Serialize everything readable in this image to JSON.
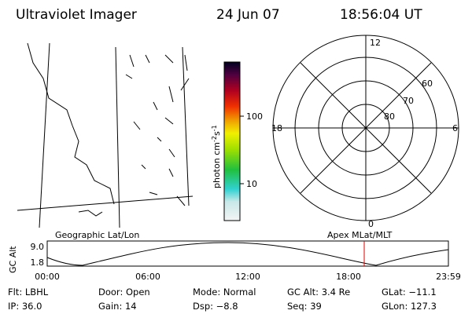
{
  "header": {
    "title": "Ultraviolet Imager",
    "date": "24 Jun 07",
    "time": "18:56:04 UT"
  },
  "colorbar": {
    "label": [
      "photon cm",
      "-2",
      "s",
      "-1"
    ],
    "ticks": [
      "100",
      "10"
    ]
  },
  "polar": {
    "hours": [
      "12",
      "18",
      "6",
      "0"
    ],
    "latitudes": [
      "60",
      "70",
      "80"
    ]
  },
  "panels": {
    "left": "Geographic Lat/Lon",
    "right": "Apex MLat/MLT"
  },
  "altitude": {
    "ylabel": "GC Alt",
    "yticks": [
      "9.0",
      "1.8"
    ],
    "xticks": [
      "00:00",
      "06:00",
      "12:00",
      "18:00",
      "23:59"
    ]
  },
  "footer": {
    "rows": [
      [
        "Flt: LBHL",
        "Door: Open",
        "Mode: Normal",
        "GC Alt: 3.4 Re",
        "GLat: −11.1"
      ],
      [
        "IP: 36.0",
        "Gain: 14",
        "Dsp:   −8.8",
        "Seq: 39",
        "GLon: 127.3"
      ]
    ]
  }
}
